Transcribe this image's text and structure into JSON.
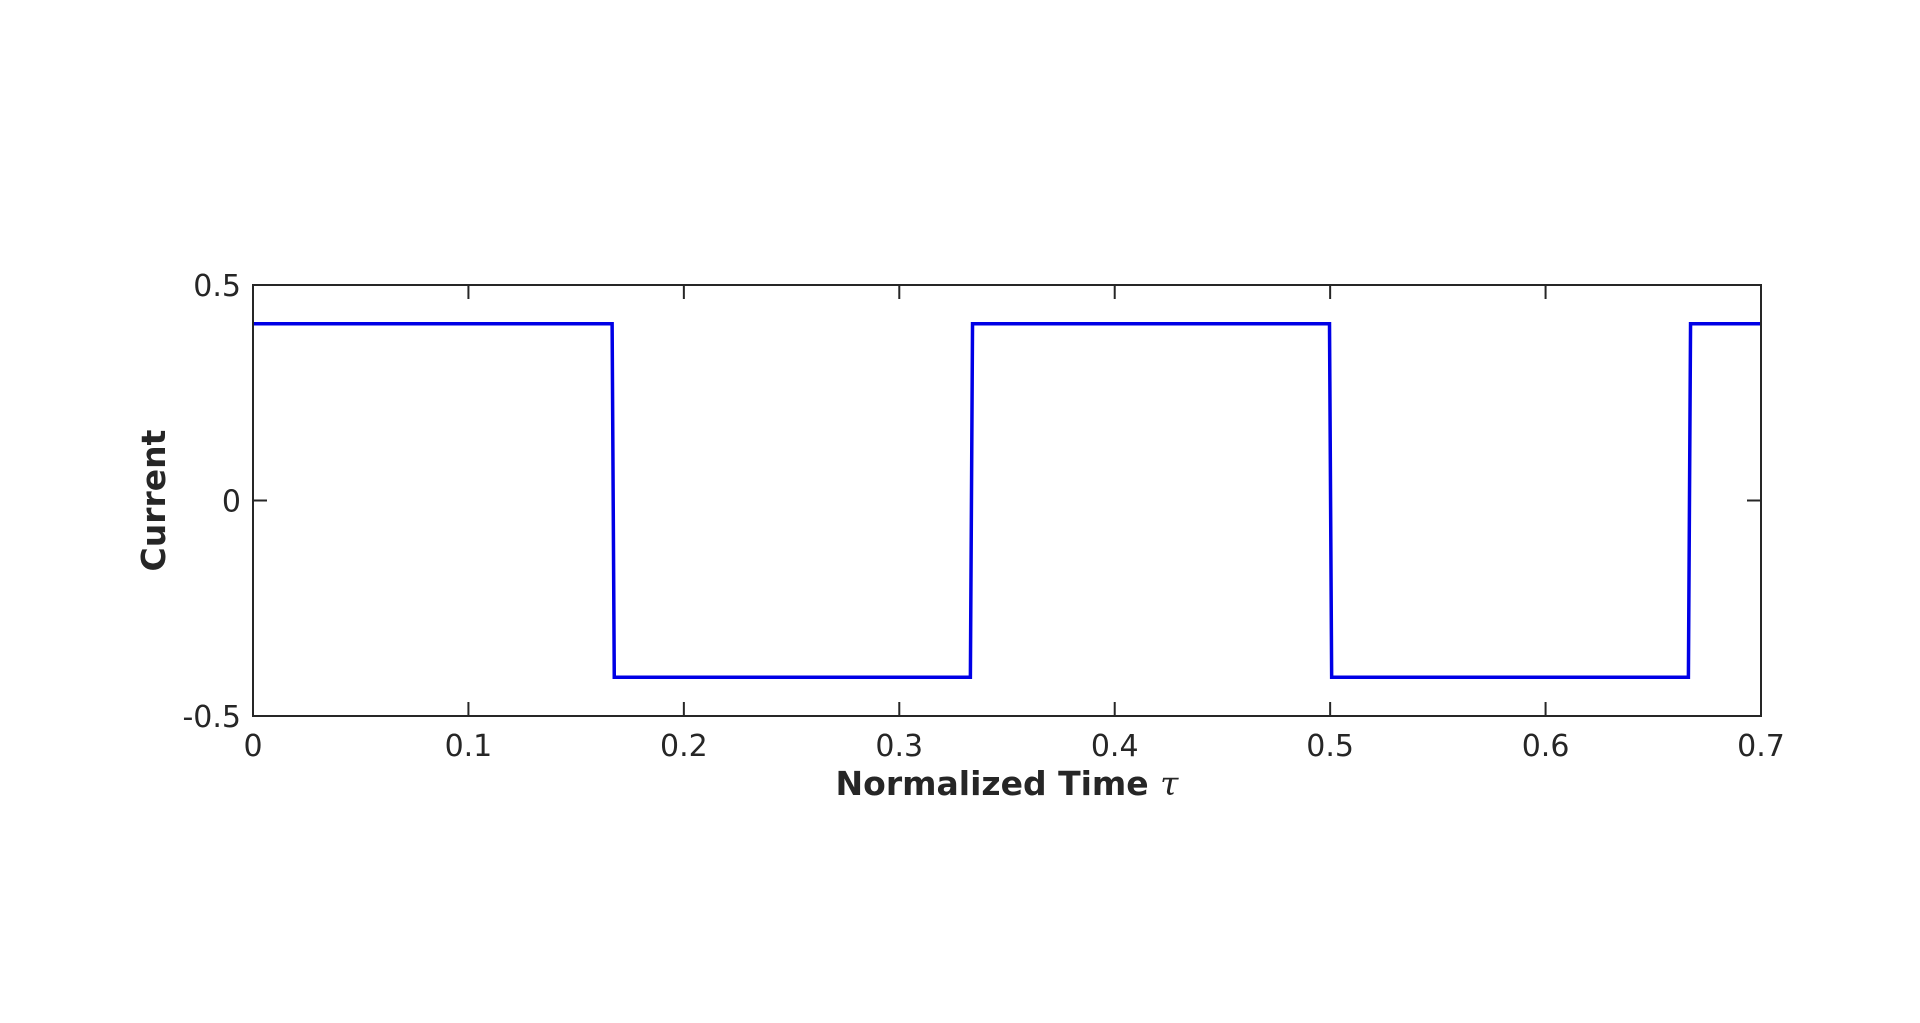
{
  "chart_data": {
    "type": "line",
    "xlabel": "Normalized Time",
    "xlabel_symbol": "τ",
    "ylabel": "Current",
    "xlim": [
      0,
      0.7
    ],
    "ylim": [
      -0.5,
      0.5
    ],
    "xticks": [
      0,
      0.1,
      0.2,
      0.3,
      0.4,
      0.5,
      0.6,
      0.7
    ],
    "xtick_labels": [
      "0",
      "0.1",
      "0.2",
      "0.3",
      "0.4",
      "0.5",
      "0.6",
      "0.7"
    ],
    "yticks": [
      -0.5,
      0,
      0.5
    ],
    "ytick_labels": [
      "-0.5",
      "0",
      "0.5"
    ],
    "grid": false,
    "series": [
      {
        "color": "#0000e6",
        "x": [
          0,
          0.1667,
          0.1677,
          0.333,
          0.334,
          0.4997,
          0.5007,
          0.6663,
          0.6673,
          0.7
        ],
        "y": [
          0.41,
          0.41,
          -0.41,
          -0.41,
          0.41,
          0.41,
          -0.41,
          -0.41,
          0.41,
          0.41
        ]
      }
    ]
  }
}
